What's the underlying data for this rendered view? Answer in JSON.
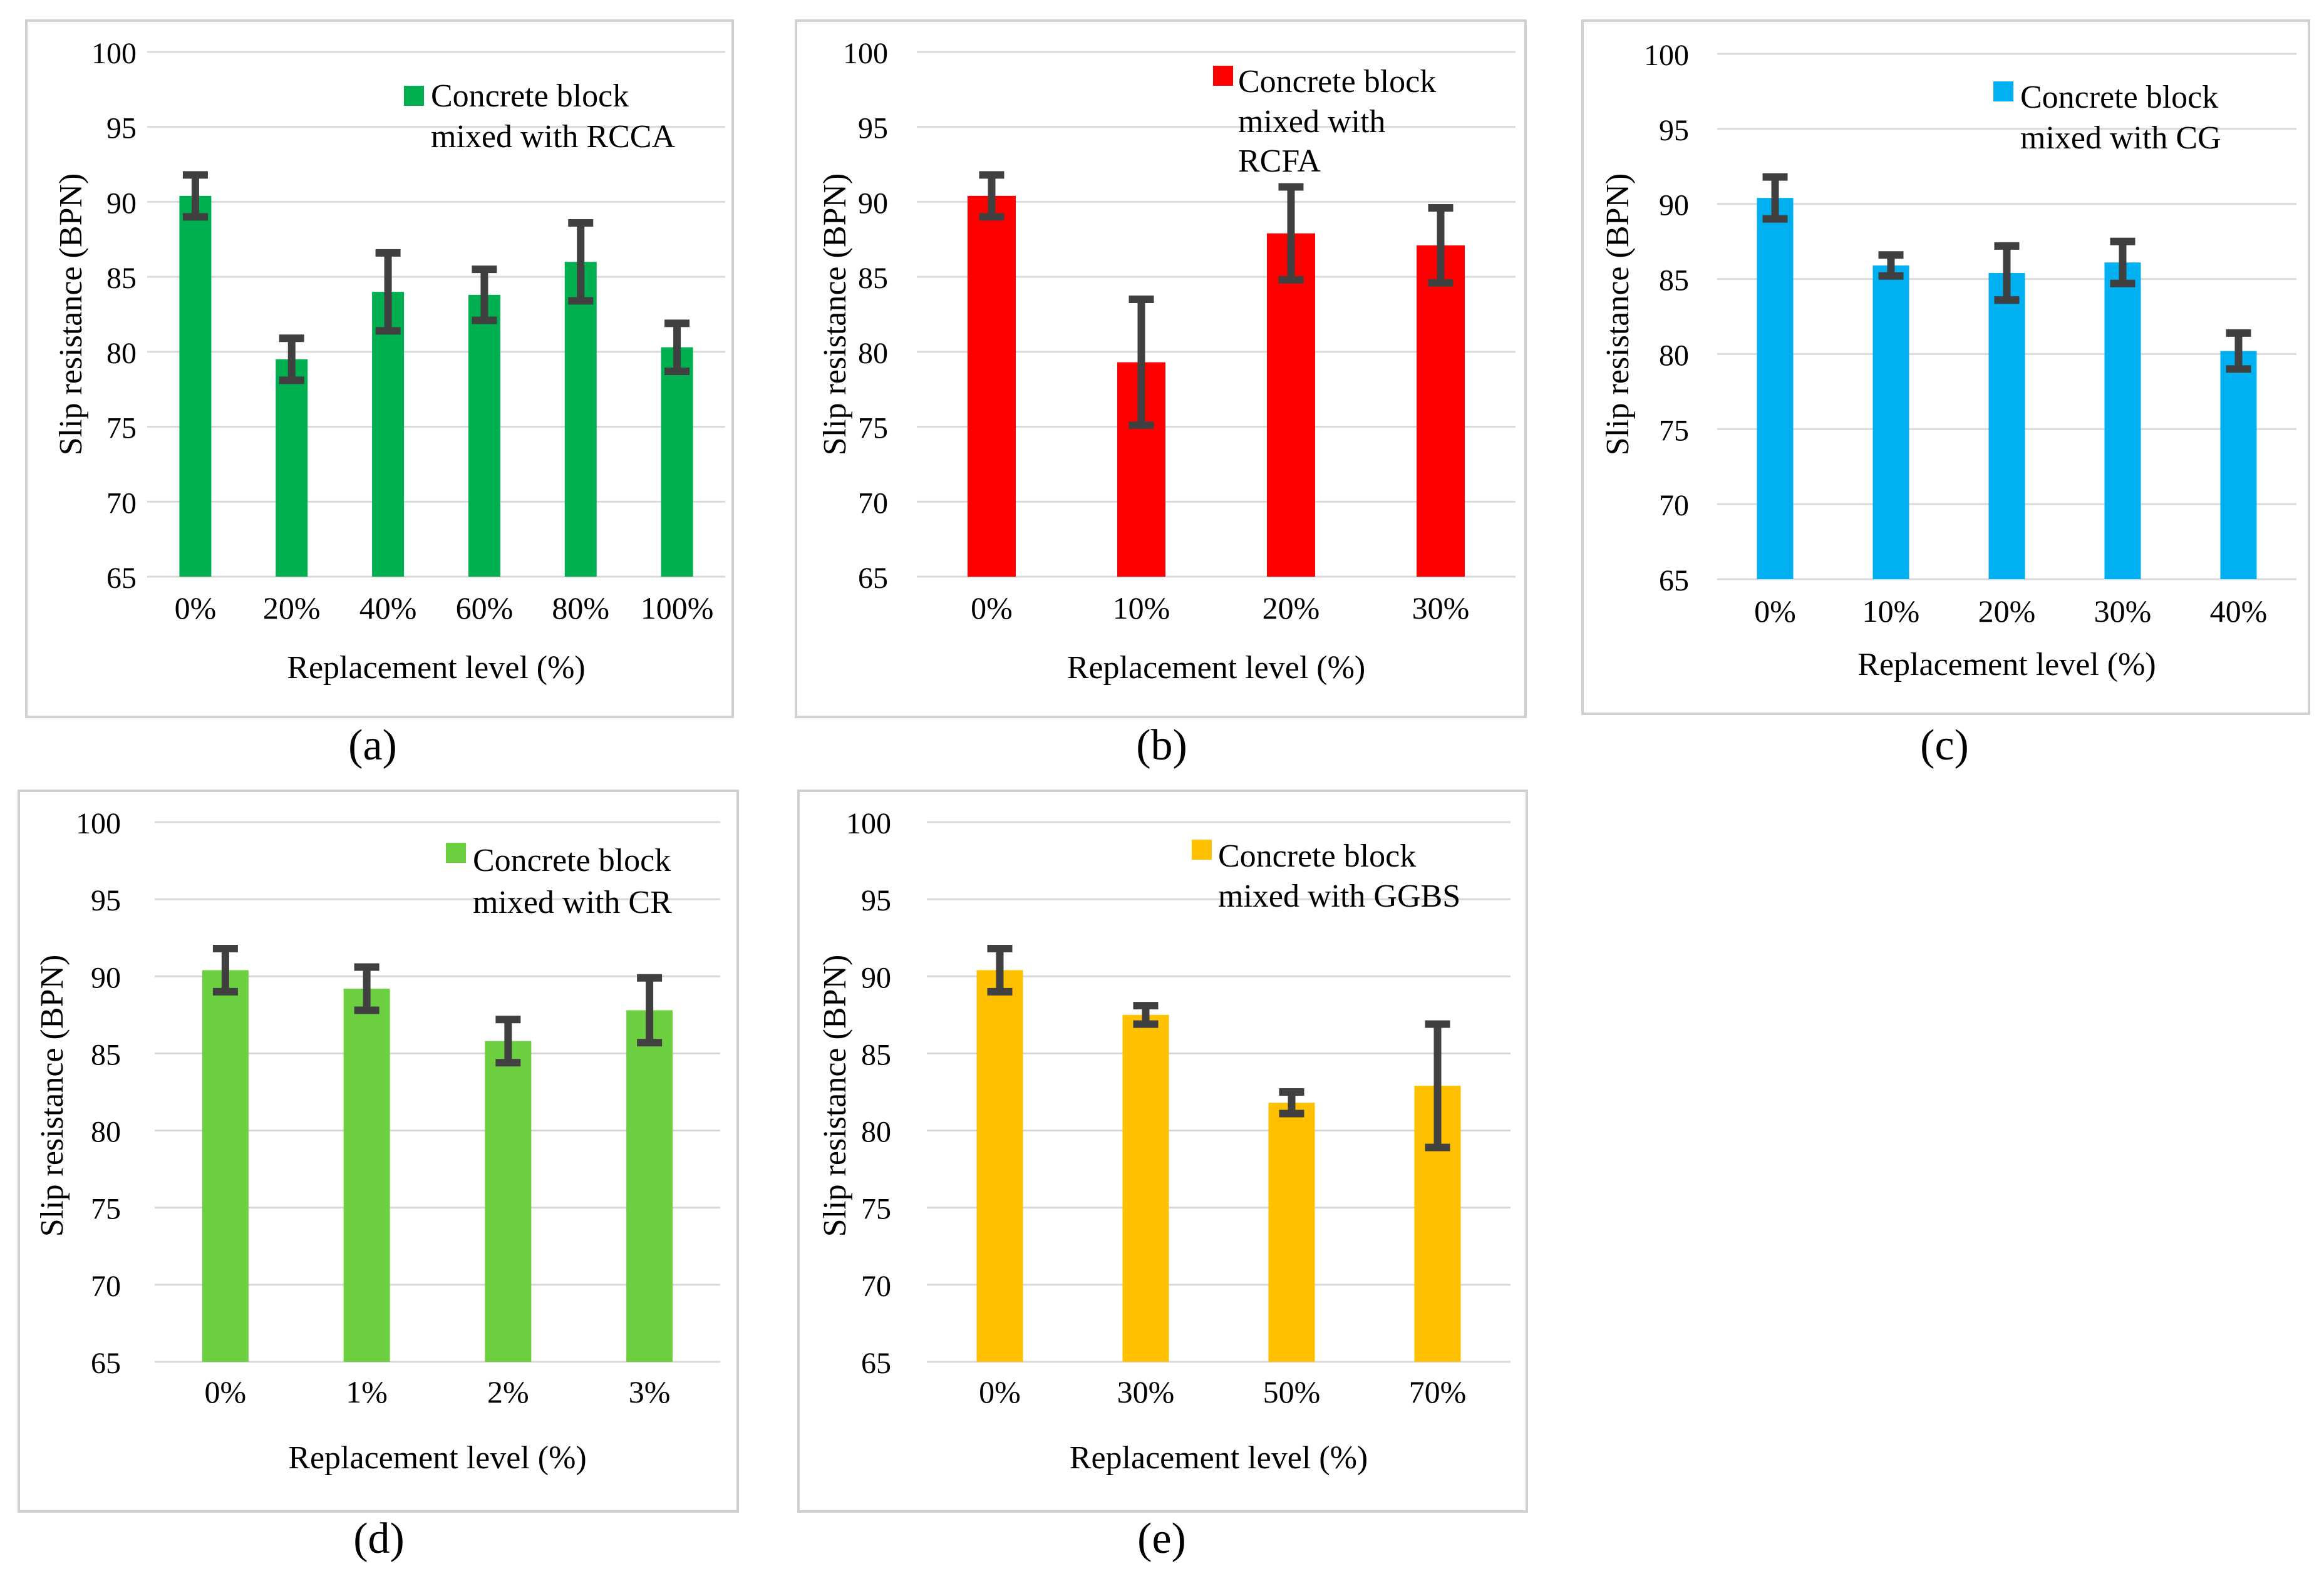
{
  "chart_data": [
    {
      "panel": "(a)",
      "type": "bar",
      "legend": [
        "Concrete block",
        "mixed with RCCA"
      ],
      "categories": [
        "0%",
        "20%",
        "40%",
        "60%",
        "80%",
        "100%"
      ],
      "series": [
        {
          "values": [
            90.4,
            79.5,
            84.0,
            83.8,
            86.0,
            80.3
          ],
          "errors": [
            1.4,
            1.4,
            2.6,
            1.7,
            2.6,
            1.6
          ]
        }
      ],
      "xlabel": "Replacement level (%)",
      "ylabel": "Slip resistance (BPN)",
      "yticks": [
        "65",
        "70",
        "75",
        "80",
        "85",
        "90",
        "95",
        "100"
      ],
      "ylim": [
        65,
        100
      ],
      "grid": true,
      "legend_position": "top-right",
      "color": "#00B050"
    },
    {
      "panel": "(b)",
      "type": "bar",
      "legend": [
        "Concrete block",
        "mixed with",
        "RCFA"
      ],
      "categories": [
        "0%",
        "10%",
        "20%",
        "30%"
      ],
      "series": [
        {
          "values": [
            90.4,
            79.3,
            87.9,
            87.1
          ],
          "errors": [
            1.4,
            4.2,
            3.1,
            2.5
          ]
        }
      ],
      "xlabel": "Replacement level (%)",
      "ylabel": "Slip resistance (BPN)",
      "yticks": [
        "65",
        "70",
        "75",
        "80",
        "85",
        "90",
        "95",
        "100"
      ],
      "ylim": [
        65,
        100
      ],
      "grid": true,
      "legend_position": "top-right",
      "color": "#FF0000"
    },
    {
      "panel": "(c)",
      "type": "bar",
      "legend": [
        "Concrete block",
        "mixed with CG"
      ],
      "categories": [
        "0%",
        "10%",
        "20%",
        "30%",
        "40%"
      ],
      "series": [
        {
          "values": [
            90.4,
            85.9,
            85.4,
            86.1,
            80.2
          ],
          "errors": [
            1.4,
            0.7,
            1.8,
            1.4,
            1.2
          ]
        }
      ],
      "xlabel": "Replacement level (%)",
      "ylabel": "Slip resistance (BPN)",
      "yticks": [
        "65",
        "70",
        "75",
        "80",
        "85",
        "90",
        "95",
        "100"
      ],
      "ylim": [
        65,
        100
      ],
      "grid": true,
      "legend_position": "top-right",
      "color": "#00B0F0"
    },
    {
      "panel": "(d)",
      "type": "bar",
      "legend": [
        "Concrete block",
        "mixed with CR"
      ],
      "categories": [
        "0%",
        "1%",
        "2%",
        "3%"
      ],
      "series": [
        {
          "values": [
            90.4,
            89.2,
            85.8,
            87.8
          ],
          "errors": [
            1.4,
            1.4,
            1.4,
            2.1
          ]
        }
      ],
      "xlabel": "Replacement level (%)",
      "ylabel": "Slip resistance (BPN)",
      "yticks": [
        "65",
        "70",
        "75",
        "80",
        "85",
        "90",
        "95",
        "100"
      ],
      "ylim": [
        65,
        100
      ],
      "grid": true,
      "legend_position": "top-right",
      "color": "#6CD040"
    },
    {
      "panel": "(e)",
      "type": "bar",
      "legend": [
        "Concrete block",
        "mixed with GGBS"
      ],
      "categories": [
        "0%",
        "30%",
        "50%",
        "70%"
      ],
      "series": [
        {
          "values": [
            90.4,
            87.5,
            81.8,
            82.9
          ],
          "errors": [
            1.4,
            0.6,
            0.7,
            4.0
          ]
        }
      ],
      "xlabel": "Replacement level (%)",
      "ylabel": "Slip resistance (BPN)",
      "yticks": [
        "65",
        "70",
        "75",
        "80",
        "85",
        "90",
        "95",
        "100"
      ],
      "ylim": [
        65,
        100
      ],
      "grid": true,
      "legend_position": "top-right",
      "color": "#FFC000"
    }
  ]
}
